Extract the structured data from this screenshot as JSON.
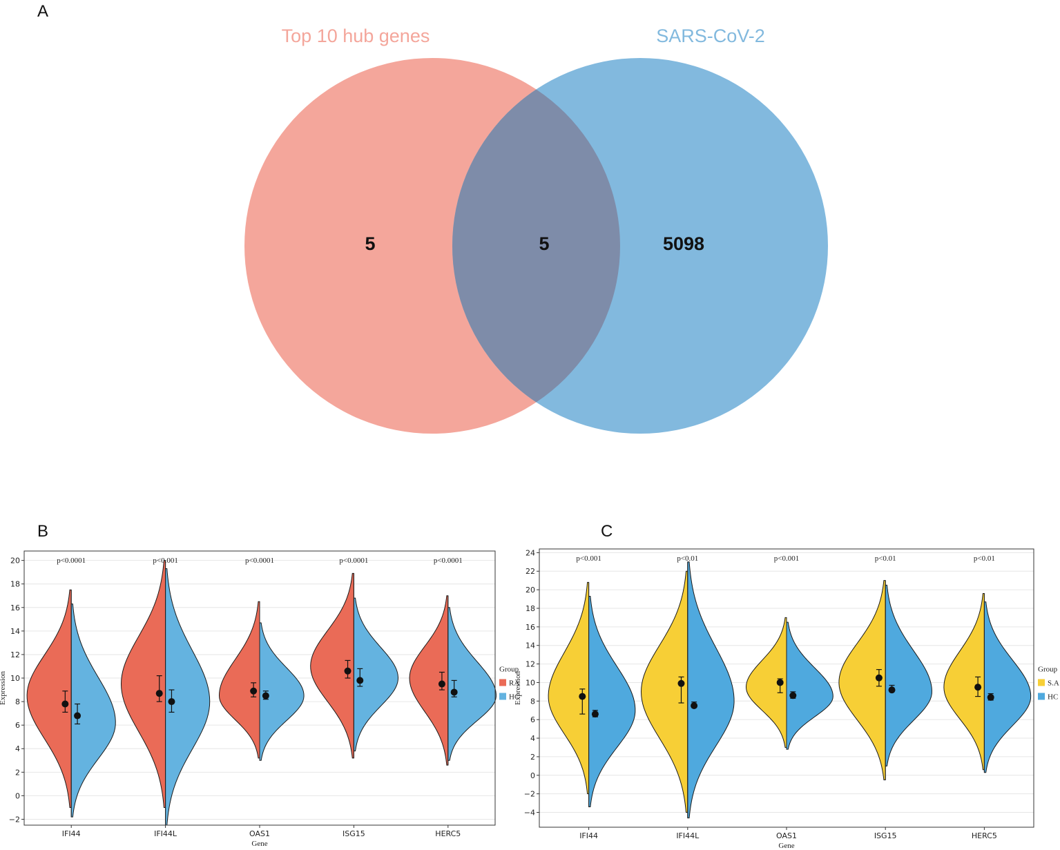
{
  "panel_labels": {
    "a": "A",
    "b": "B",
    "c": "C"
  },
  "chart_data": [
    {
      "type": "venn",
      "panel": "A",
      "sets": [
        {
          "name": "Top 10 hub genes",
          "color": "#f4a69b"
        },
        {
          "name": "SARS-CoV-2",
          "color": "#82b9de"
        }
      ],
      "overlap_color": "#7e8ca9",
      "counts": {
        "only_left": "5",
        "intersection": "5",
        "only_right": "5098"
      }
    },
    {
      "type": "split-violin",
      "panel": "B",
      "xlabel": "Gene",
      "ylabel": "Expression",
      "ylim": [
        -2.5,
        20.8
      ],
      "yticks": [
        "−2",
        "0",
        "2",
        "4",
        "6",
        "8",
        "10",
        "12",
        "14",
        "16",
        "18",
        "20"
      ],
      "legend": {
        "title": "Group",
        "entries": [
          {
            "label": "RA",
            "color": "#ea6b57"
          },
          {
            "label": "HC",
            "color": "#64b3e0"
          }
        ]
      },
      "genes": [
        {
          "name": "IFI44",
          "p": "p<0.0001",
          "left": {
            "min": -1.0,
            "max": 17.5,
            "mode": 8.5,
            "width": 0.46,
            "mean": 7.8,
            "lo": 7.1,
            "hi": 8.9
          },
          "right": {
            "min": -1.8,
            "max": 16.3,
            "mode": 6.2,
            "width": 0.46,
            "mean": 6.8,
            "lo": 6.1,
            "hi": 7.8
          }
        },
        {
          "name": "IFI44L",
          "p": "p<0.001",
          "left": {
            "min": -1.0,
            "max": 20.0,
            "mode": 9.5,
            "width": 0.46,
            "mean": 8.7,
            "lo": 8.0,
            "hi": 10.2
          },
          "right": {
            "min": -2.5,
            "max": 19.3,
            "mode": 8.0,
            "width": 0.46,
            "mean": 8.0,
            "lo": 7.1,
            "hi": 9.0
          }
        },
        {
          "name": "OAS1",
          "p": "p<0.0001",
          "left": {
            "min": 3.2,
            "max": 16.5,
            "mode": 8.5,
            "width": 0.42,
            "mean": 8.9,
            "lo": 8.4,
            "hi": 9.6
          },
          "right": {
            "min": 3.0,
            "max": 14.7,
            "mode": 8.5,
            "width": 0.46,
            "mean": 8.5,
            "lo": 8.2,
            "hi": 8.9
          }
        },
        {
          "name": "ISG15",
          "p": "p<0.0001",
          "left": {
            "min": 3.2,
            "max": 18.9,
            "mode": 11.0,
            "width": 0.45,
            "mean": 10.6,
            "lo": 10.0,
            "hi": 11.5
          },
          "right": {
            "min": 3.8,
            "max": 16.8,
            "mode": 10.0,
            "width": 0.46,
            "mean": 9.8,
            "lo": 9.3,
            "hi": 10.8
          }
        },
        {
          "name": "HERC5",
          "p": "p<0.0001",
          "left": {
            "min": 2.6,
            "max": 17.0,
            "mode": 10.0,
            "width": 0.4,
            "mean": 9.5,
            "lo": 9.0,
            "hi": 10.5
          },
          "right": {
            "min": 3.0,
            "max": 16.0,
            "mode": 8.5,
            "width": 0.5,
            "mean": 8.8,
            "lo": 8.4,
            "hi": 9.8
          }
        }
      ]
    },
    {
      "type": "split-violin",
      "panel": "C",
      "xlabel": "Gene",
      "ylabel": "Expression",
      "ylim": [
        -5.6,
        24.4
      ],
      "yticks": [
        "−4",
        "−2",
        "0",
        "2",
        "4",
        "6",
        "8",
        "10",
        "12",
        "14",
        "16",
        "18",
        "20",
        "22",
        "24"
      ],
      "legend": {
        "title": "Group",
        "entries": [
          {
            "label": "S.A",
            "color": "#f7cf36"
          },
          {
            "label": "HC",
            "color": "#4fa9de"
          }
        ]
      },
      "genes": [
        {
          "name": "IFI44",
          "p": "p<0.001",
          "left": {
            "min": -2.0,
            "max": 20.8,
            "mode": 8.5,
            "width": 0.4,
            "mean": 8.5,
            "lo": 6.6,
            "hi": 9.3
          },
          "right": {
            "min": -3.4,
            "max": 19.3,
            "mode": 7.0,
            "width": 0.46,
            "mean": 6.6,
            "lo": 6.3,
            "hi": 7.0
          }
        },
        {
          "name": "IFI44L",
          "p": "p<0.01",
          "left": {
            "min": -4.0,
            "max": 22.0,
            "mode": 9.0,
            "width": 0.46,
            "mean": 9.9,
            "lo": 7.8,
            "hi": 10.6
          },
          "right": {
            "min": -4.6,
            "max": 23.0,
            "mode": 8.0,
            "width": 0.46,
            "mean": 7.5,
            "lo": 7.3,
            "hi": 7.9
          }
        },
        {
          "name": "OAS1",
          "p": "p<0.001",
          "left": {
            "min": 3.0,
            "max": 17.0,
            "mode": 9.5,
            "width": 0.4,
            "mean": 10.0,
            "lo": 8.9,
            "hi": 10.4
          },
          "right": {
            "min": 2.8,
            "max": 16.5,
            "mode": 8.5,
            "width": 0.46,
            "mean": 8.6,
            "lo": 8.3,
            "hi": 9.0
          }
        },
        {
          "name": "ISG15",
          "p": "p<0.01",
          "left": {
            "min": -0.5,
            "max": 21.0,
            "mode": 10.0,
            "width": 0.46,
            "mean": 10.5,
            "lo": 9.6,
            "hi": 11.4
          },
          "right": {
            "min": 1.0,
            "max": 20.5,
            "mode": 9.0,
            "width": 0.46,
            "mean": 9.2,
            "lo": 9.0,
            "hi": 9.7
          }
        },
        {
          "name": "HERC5",
          "p": "p<0.01",
          "left": {
            "min": 0.6,
            "max": 19.6,
            "mode": 9.5,
            "width": 0.4,
            "mean": 9.5,
            "lo": 8.5,
            "hi": 10.6
          },
          "right": {
            "min": 0.3,
            "max": 18.7,
            "mode": 8.5,
            "width": 0.46,
            "mean": 8.4,
            "lo": 8.1,
            "hi": 8.8
          }
        }
      ]
    }
  ]
}
